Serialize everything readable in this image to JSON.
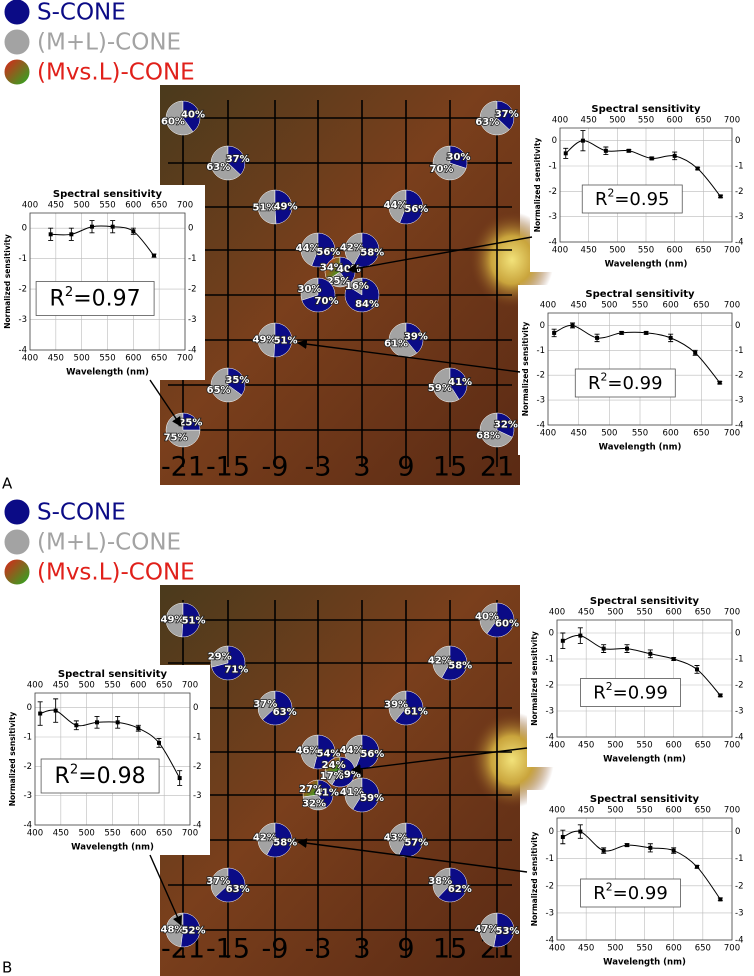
{
  "panels": [
    {
      "label": "A",
      "legend": [
        {
          "name": "S-CONE",
          "color": "#0b0b86"
        },
        {
          "name": "(M+L)-CONE",
          "color": "#a3a3a3"
        },
        {
          "name": "(Mvs.L)-CONE",
          "color": "#e0201a"
        }
      ],
      "x_labels": [
        -21,
        -15,
        -9,
        -3,
        3,
        9,
        15,
        21
      ],
      "pies": [
        {
          "values": [
            60,
            40
          ],
          "value_labels": [
            "60%",
            "40%"
          ],
          "colors": [
            "#a3a3a3",
            "#0b0b86"
          ]
        },
        {
          "values": [
            63,
            37
          ],
          "value_labels": [
            "63%",
            "37%"
          ],
          "colors": [
            "#a3a3a3",
            "#0b0b86"
          ]
        },
        {
          "values": [
            51,
            49
          ],
          "value_labels": [
            "51%",
            "49%"
          ],
          "colors": [
            "#a3a3a3",
            "#0b0b86"
          ]
        },
        {
          "values": [
            44,
            56
          ],
          "value_labels": [
            "44%",
            "56%"
          ],
          "colors": [
            "#a3a3a3",
            "#0b0b86"
          ]
        },
        {
          "values": [
            42,
            58
          ],
          "value_labels": [
            "42%",
            "58%"
          ],
          "colors": [
            "#a3a3a3",
            "#0b0b86"
          ]
        },
        {
          "values": [
            34,
            40,
            25
          ],
          "value_labels": [
            "34%",
            "40%",
            "25%"
          ],
          "colors": [
            "#e0201a",
            "#0b0b86",
            "#a3a3a3"
          ]
        },
        {
          "values": [
            30,
            70
          ],
          "value_labels": [
            "30%",
            "70%"
          ],
          "colors": [
            "#a3a3a3",
            "#0b0b86"
          ]
        },
        {
          "values": [
            16,
            84
          ],
          "value_labels": [
            "16%",
            "84%"
          ],
          "colors": [
            "#a3a3a3",
            "#0b0b86"
          ]
        },
        {
          "values": [
            49,
            51
          ],
          "value_labels": [
            "49%",
            "51%"
          ],
          "colors": [
            "#a3a3a3",
            "#0b0b86"
          ]
        },
        {
          "values": [
            44,
            56
          ],
          "value_labels": [
            "44%",
            "56%"
          ],
          "colors": [
            "#a3a3a3",
            "#0b0b86"
          ]
        },
        {
          "values": [
            70,
            30
          ],
          "value_labels": [
            "70%",
            "30%"
          ],
          "colors": [
            "#a3a3a3",
            "#0b0b86"
          ]
        },
        {
          "values": [
            63,
            37
          ],
          "value_labels": [
            "63%",
            "37%"
          ],
          "colors": [
            "#a3a3a3",
            "#0b0b86"
          ]
        },
        {
          "values": [
            61,
            39
          ],
          "value_labels": [
            "61%",
            "39%"
          ],
          "colors": [
            "#a3a3a3",
            "#0b0b86"
          ]
        },
        {
          "values": [
            65,
            35
          ],
          "value_labels": [
            "65%",
            "35%"
          ],
          "colors": [
            "#a3a3a3",
            "#0b0b86"
          ]
        },
        {
          "values": [
            59,
            41
          ],
          "value_labels": [
            "59%",
            "41%"
          ],
          "colors": [
            "#a3a3a3",
            "#0b0b86"
          ]
        },
        {
          "values": [
            75,
            25
          ],
          "value_labels": [
            "75%",
            "25%"
          ],
          "colors": [
            "#a3a3a3",
            "#0b0b86"
          ]
        },
        {
          "values": [
            68,
            32
          ],
          "value_labels": [
            "68%",
            "32%"
          ],
          "colors": [
            "#a3a3a3",
            "#0b0b86"
          ]
        }
      ],
      "insets": [
        {
          "type": "line",
          "title": "Spectral sensitivity",
          "xlabel": "Wavelength (nm)",
          "ylabel": "Normalized sensitivity",
          "x": [
            440,
            480,
            520,
            560,
            600,
            640
          ],
          "values": [
            -0.2,
            -0.2,
            0.05,
            0.05,
            -0.1,
            -0.9
          ],
          "errors": [
            0.2,
            0.2,
            0.2,
            0.2,
            0.1,
            0.05
          ],
          "xlim": [
            400,
            700
          ],
          "ylim": [
            -4,
            0.5
          ],
          "xticks": [
            400,
            450,
            500,
            550,
            600,
            650,
            700
          ],
          "yticks": [
            0,
            -1,
            -2,
            -3,
            -4
          ],
          "grid": true,
          "r2_symbol": "R",
          "r2_power": "2",
          "r2_text": "=0.97"
        },
        {
          "type": "line",
          "title": "Spectral sensitivity",
          "xlabel": "Wavelength (nm)",
          "ylabel": "Normalized sensitivity",
          "x": [
            410,
            440,
            480,
            520,
            560,
            600,
            640,
            680
          ],
          "values": [
            -0.5,
            0.0,
            -0.4,
            -0.4,
            -0.7,
            -0.6,
            -1.1,
            -2.2
          ],
          "errors": [
            0.2,
            0.4,
            0.15,
            0.05,
            0.05,
            0.15,
            0.05,
            0.05
          ],
          "xlim": [
            400,
            700
          ],
          "ylim": [
            -4,
            0.5
          ],
          "xticks": [
            400,
            450,
            500,
            550,
            600,
            650,
            700
          ],
          "yticks": [
            0,
            -1,
            -2,
            -3,
            -4
          ],
          "grid": true,
          "r2_symbol": "R",
          "r2_power": "2",
          "r2_text": "=0.95"
        },
        {
          "type": "line",
          "title": "Spectral sensitivity",
          "xlabel": "Wavelength (nm)",
          "ylabel": "Normalized sensitivity",
          "x": [
            410,
            440,
            480,
            520,
            560,
            600,
            640,
            680
          ],
          "values": [
            -0.3,
            0.0,
            -0.5,
            -0.3,
            -0.3,
            -0.5,
            -1.1,
            -2.3
          ],
          "errors": [
            0.15,
            0.1,
            0.15,
            0.05,
            0.05,
            0.15,
            0.1,
            0.05
          ],
          "xlim": [
            400,
            700
          ],
          "ylim": [
            -4,
            0.5
          ],
          "xticks": [
            400,
            450,
            500,
            550,
            600,
            650,
            700
          ],
          "yticks": [
            0,
            -1,
            -2,
            -3,
            -4
          ],
          "grid": true,
          "r2_symbol": "R",
          "r2_power": "2",
          "r2_text": "=0.99"
        }
      ]
    },
    {
      "label": "B",
      "legend": [
        {
          "name": "S-CONE",
          "color": "#0b0b86"
        },
        {
          "name": "(M+L)-CONE",
          "color": "#a3a3a3"
        },
        {
          "name": "(Mvs.L)-CONE",
          "color": "#e0201a"
        }
      ],
      "x_labels": [
        -21,
        -15,
        -9,
        -3,
        3,
        9,
        15,
        21
      ],
      "pies": [
        {
          "values": [
            49,
            51
          ],
          "value_labels": [
            "49%",
            "51%"
          ],
          "colors": [
            "#a3a3a3",
            "#0b0b86"
          ]
        },
        {
          "values": [
            29,
            71
          ],
          "value_labels": [
            "29%",
            "71%"
          ],
          "colors": [
            "#a3a3a3",
            "#0b0b86"
          ]
        },
        {
          "values": [
            37,
            63
          ],
          "value_labels": [
            "37%",
            "63%"
          ],
          "colors": [
            "#a3a3a3",
            "#0b0b86"
          ]
        },
        {
          "values": [
            46,
            54
          ],
          "value_labels": [
            "46%",
            "54%"
          ],
          "colors": [
            "#a3a3a3",
            "#0b0b86"
          ]
        },
        {
          "values": [
            44,
            56
          ],
          "value_labels": [
            "44%",
            "56%"
          ],
          "colors": [
            "#a3a3a3",
            "#0b0b86"
          ]
        },
        {
          "values": [
            24,
            59,
            17
          ],
          "value_labels": [
            "24%",
            "59%",
            "17%"
          ],
          "colors": [
            "#e0201a",
            "#0b0b86",
            "#a3a3a3"
          ]
        },
        {
          "values": [
            27,
            41,
            32
          ],
          "value_labels": [
            "27%",
            "41%",
            "32%"
          ],
          "colors": [
            "#e0201a",
            "#0b0b86",
            "#a3a3a3"
          ]
        },
        {
          "values": [
            41,
            59
          ],
          "value_labels": [
            "41%",
            "59%"
          ],
          "colors": [
            "#a3a3a3",
            "#0b0b86"
          ]
        },
        {
          "values": [
            39,
            61
          ],
          "value_labels": [
            "39%",
            "61%"
          ],
          "colors": [
            "#a3a3a3",
            "#0b0b86"
          ]
        },
        {
          "values": [
            42,
            58
          ],
          "value_labels": [
            "42%",
            "58%"
          ],
          "colors": [
            "#a3a3a3",
            "#0b0b86"
          ]
        },
        {
          "values": [
            40,
            60
          ],
          "value_labels": [
            "40%",
            "60%"
          ],
          "colors": [
            "#a3a3a3",
            "#0b0b86"
          ]
        },
        {
          "values": [
            42,
            58
          ],
          "value_labels": [
            "42%",
            "58%"
          ],
          "colors": [
            "#a3a3a3",
            "#0b0b86"
          ]
        },
        {
          "values": [
            43,
            57
          ],
          "value_labels": [
            "43%",
            "57%"
          ],
          "colors": [
            "#a3a3a3",
            "#0b0b86"
          ]
        },
        {
          "values": [
            37,
            63
          ],
          "value_labels": [
            "37%",
            "63%"
          ],
          "colors": [
            "#a3a3a3",
            "#0b0b86"
          ]
        },
        {
          "values": [
            38,
            62
          ],
          "value_labels": [
            "38%",
            "62%"
          ],
          "colors": [
            "#a3a3a3",
            "#0b0b86"
          ]
        },
        {
          "values": [
            48,
            52
          ],
          "value_labels": [
            "48%",
            "52%"
          ],
          "colors": [
            "#a3a3a3",
            "#0b0b86"
          ]
        },
        {
          "values": [
            47,
            53
          ],
          "value_labels": [
            "47%",
            "53%"
          ],
          "colors": [
            "#a3a3a3",
            "#0b0b86"
          ]
        }
      ],
      "insets": [
        {
          "type": "line",
          "title": "Spectral sensitivity",
          "xlabel": "Wavelength (nm)",
          "ylabel": "Normalized sensitivity",
          "x": [
            410,
            440,
            480,
            520,
            560,
            600,
            640,
            680
          ],
          "values": [
            -0.2,
            -0.1,
            -0.6,
            -0.5,
            -0.5,
            -0.7,
            -1.2,
            -2.4
          ],
          "errors": [
            0.4,
            0.4,
            0.15,
            0.2,
            0.2,
            0.1,
            0.15,
            0.25
          ],
          "xlim": [
            400,
            700
          ],
          "ylim": [
            -4,
            0.5
          ],
          "xticks": [
            400,
            450,
            500,
            550,
            600,
            650,
            700
          ],
          "yticks": [
            0,
            -1,
            -2,
            -3,
            -4
          ],
          "grid": true,
          "r2_symbol": "R",
          "r2_power": "2",
          "r2_text": "=0.98"
        },
        {
          "type": "line",
          "title": "Spectral sensitivity",
          "xlabel": "Wavelength (nm)",
          "ylabel": "Normalized sensitivity",
          "x": [
            410,
            440,
            480,
            520,
            560,
            600,
            640,
            680
          ],
          "values": [
            -0.3,
            -0.1,
            -0.6,
            -0.6,
            -0.8,
            -1.0,
            -1.4,
            -2.4
          ],
          "errors": [
            0.3,
            0.3,
            0.15,
            0.15,
            0.15,
            0.05,
            0.15,
            0.05
          ],
          "xlim": [
            400,
            700
          ],
          "ylim": [
            -4,
            0.5
          ],
          "xticks": [
            400,
            450,
            500,
            550,
            600,
            650,
            700
          ],
          "yticks": [
            0,
            -1,
            -2,
            -3,
            -4
          ],
          "grid": true,
          "r2_symbol": "R",
          "r2_power": "2",
          "r2_text": "=0.99"
        },
        {
          "type": "line",
          "title": "Spectral sensitivity",
          "xlabel": "Wavelength (nm)",
          "ylabel": "Normalized sensitivity",
          "x": [
            410,
            440,
            480,
            520,
            560,
            600,
            640,
            680
          ],
          "values": [
            -0.2,
            0.0,
            -0.7,
            -0.5,
            -0.6,
            -0.7,
            -1.3,
            -2.5
          ],
          "errors": [
            0.25,
            0.25,
            0.1,
            0.05,
            0.15,
            0.1,
            0.05,
            0.05
          ],
          "xlim": [
            400,
            700
          ],
          "ylim": [
            -4,
            0.5
          ],
          "xticks": [
            400,
            450,
            500,
            550,
            600,
            650,
            700
          ],
          "yticks": [
            0,
            -1,
            -2,
            -3,
            -4
          ],
          "grid": true,
          "r2_symbol": "R",
          "r2_power": "2",
          "r2_text": "=0.99"
        }
      ]
    }
  ]
}
